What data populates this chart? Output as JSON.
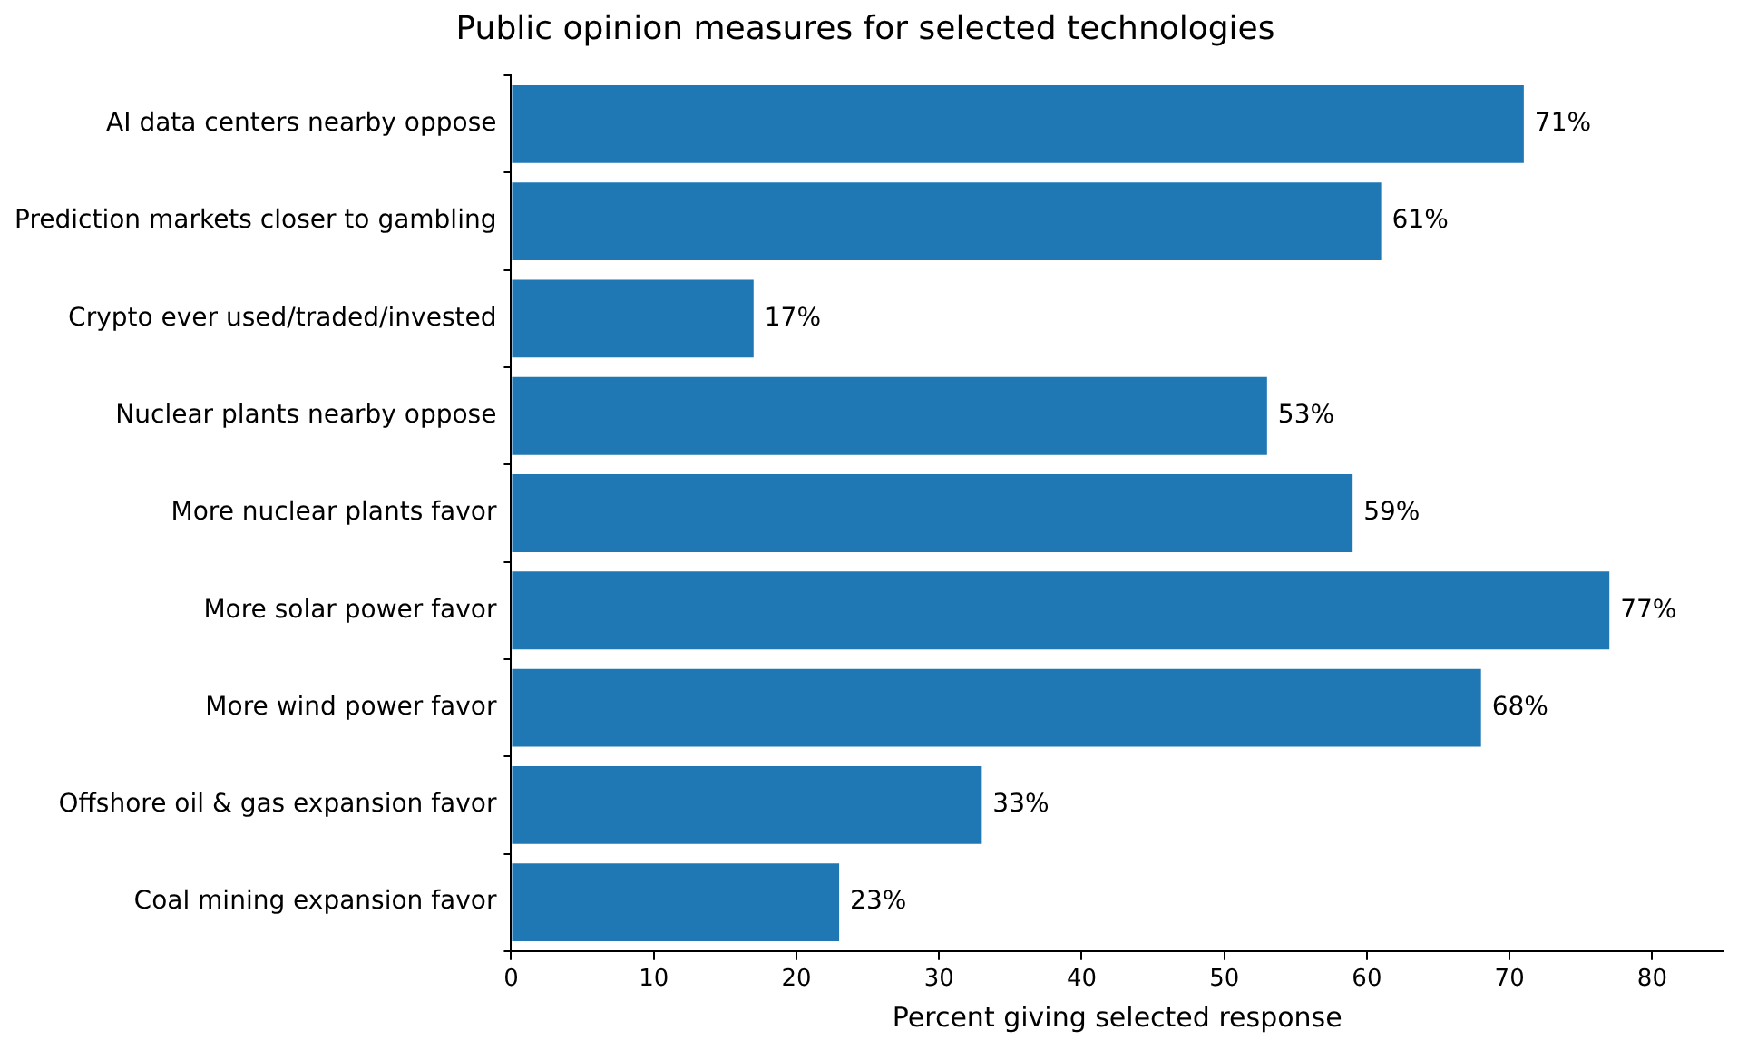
{
  "chart_data": {
    "type": "bar",
    "orientation": "horizontal",
    "title": "Public opinion measures for selected technologies",
    "xlabel": "Percent giving selected response",
    "categories": [
      "AI data centers nearby oppose",
      "Prediction markets closer to gambling",
      "Crypto ever used/traded/invested",
      "Nuclear plants nearby oppose",
      "More nuclear plants favor",
      "More solar power favor",
      "More wind power favor",
      "Offshore oil & gas expansion favor",
      "Coal mining expansion favor"
    ],
    "values": [
      71,
      61,
      17,
      53,
      59,
      77,
      68,
      33,
      23
    ],
    "value_labels": [
      "71%",
      "61%",
      "17%",
      "53%",
      "59%",
      "77%",
      "68%",
      "33%",
      "23%"
    ],
    "color": "#1f77b4",
    "xlim": [
      0,
      85
    ],
    "xticks": [
      0,
      10,
      20,
      30,
      40,
      50,
      60,
      70,
      80
    ],
    "grid": false,
    "legend": false
  }
}
